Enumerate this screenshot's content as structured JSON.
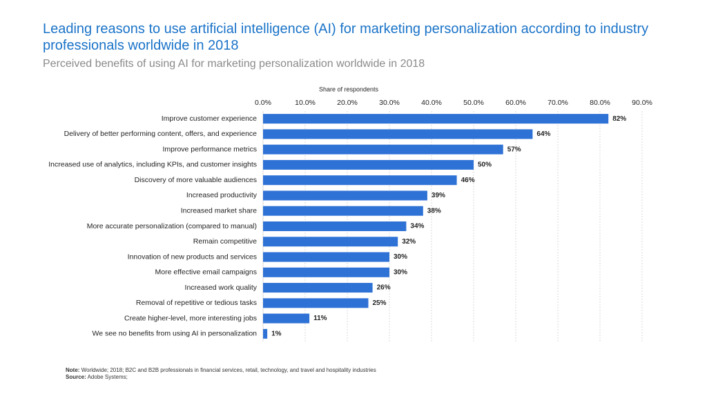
{
  "chart_data": {
    "type": "hbar",
    "title": "Leading reasons to use artificial intelligence (AI) for marketing personalization according to industry professionals worldwide in 2018",
    "subtitle": "Perceived benefits of using AI for marketing personalization worldwide in 2018",
    "x_axis_label": "Share of respondents",
    "categories": [
      "Improve customer experience",
      "Delivery of better performing content, offers, and experience",
      "Improve performance metrics",
      "Increased use of analytics, including KPIs, and customer insights",
      "Discovery of more valuable audiences",
      "Increased productivity",
      "Increased market share",
      "More accurate personalization (compared to manual)",
      "Remain competitive",
      "Innovation of new products and services",
      "More effective email campaigns",
      "Increased work quality",
      "Removal of repetitive or tedious tasks",
      "Create higher-level, more interesting jobs",
      "We see no benefits from using AI in personalization"
    ],
    "values": [
      82,
      64,
      57,
      50,
      46,
      39,
      38,
      34,
      32,
      30,
      30,
      26,
      25,
      11,
      1
    ],
    "value_labels": [
      "82%",
      "64%",
      "57%",
      "50%",
      "46%",
      "39%",
      "38%",
      "34%",
      "32%",
      "30%",
      "30%",
      "26%",
      "25%",
      "11%",
      "1%"
    ],
    "color": "#2f72d6",
    "xlim": [
      0,
      90
    ],
    "xticks": [
      {
        "value": 0,
        "label": "0.0%"
      },
      {
        "value": 10,
        "label": "10.0%"
      },
      {
        "value": 20,
        "label": "20.0%"
      },
      {
        "value": 30,
        "label": "30.0%"
      },
      {
        "value": 40,
        "label": "40.0%"
      },
      {
        "value": 50,
        "label": "50.0%"
      },
      {
        "value": 60,
        "label": "60.0%"
      },
      {
        "value": 70,
        "label": "70.0%"
      },
      {
        "value": 80,
        "label": "80.0%"
      },
      {
        "value": 90,
        "label": "90.0%"
      }
    ],
    "grid": true
  },
  "note_label": "Note:",
  "note": "Worldwide; 2018; B2C and B2B professionals in financial services, retail, technology, and travel and hospitality industries",
  "source_label": "Source:",
  "source": "Adobe Systems;"
}
